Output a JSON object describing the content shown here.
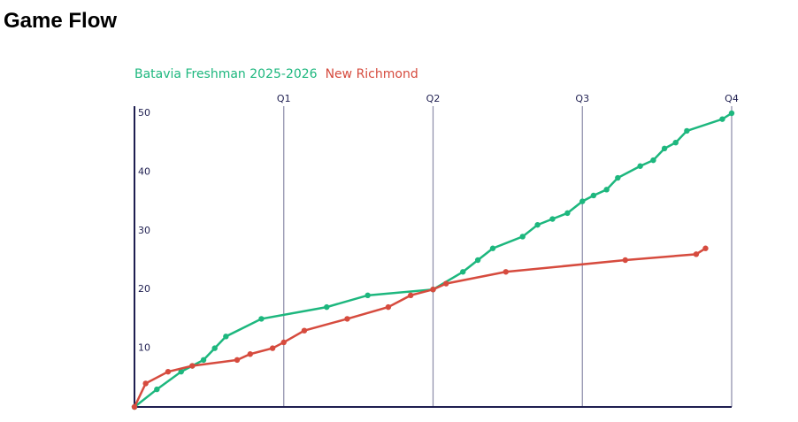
{
  "title": "Game Flow",
  "chart_data": {
    "type": "line",
    "series": [
      {
        "name": "Batavia Freshman 2025-2026",
        "color": "#1db77e",
        "x": [
          0,
          1.2,
          2.5,
          3.1,
          3.7,
          4.3,
          4.9,
          6.8,
          10.3,
          12.5,
          16,
          17.6,
          18.4,
          19.2,
          20.8,
          21.6,
          22.4,
          23.2,
          24,
          24.6,
          25.3,
          25.9,
          27.1,
          27.8,
          28.4,
          29,
          29.6,
          31.5,
          32
        ],
        "values": [
          0,
          3,
          6,
          7,
          8,
          10,
          12,
          15,
          17,
          19,
          20,
          23,
          25,
          27,
          29,
          31,
          32,
          33,
          35,
          36,
          37,
          39,
          41,
          42,
          44,
          45,
          47,
          49,
          50
        ]
      },
      {
        "name": "New Richmond",
        "color": "#d64b3e",
        "x": [
          0,
          0.6,
          1.8,
          3.1,
          5.5,
          6.2,
          7.4,
          8,
          9.1,
          11.4,
          13.6,
          14.8,
          16,
          16.7,
          19.9,
          26.3,
          30.1,
          30.6
        ],
        "values": [
          0,
          4,
          6,
          7,
          8,
          9,
          10,
          11,
          13,
          15,
          17,
          19,
          20,
          21,
          23,
          25,
          26,
          27
        ]
      }
    ],
    "xlim": [
      0,
      32
    ],
    "xticks": [
      {
        "value": 8,
        "label": "Q1"
      },
      {
        "value": 16,
        "label": "Q2"
      },
      {
        "value": 24,
        "label": "Q3"
      },
      {
        "value": 32,
        "label": "Q4"
      }
    ],
    "ylim": [
      0,
      50
    ],
    "yticks": [
      10,
      20,
      30,
      40,
      50
    ]
  }
}
